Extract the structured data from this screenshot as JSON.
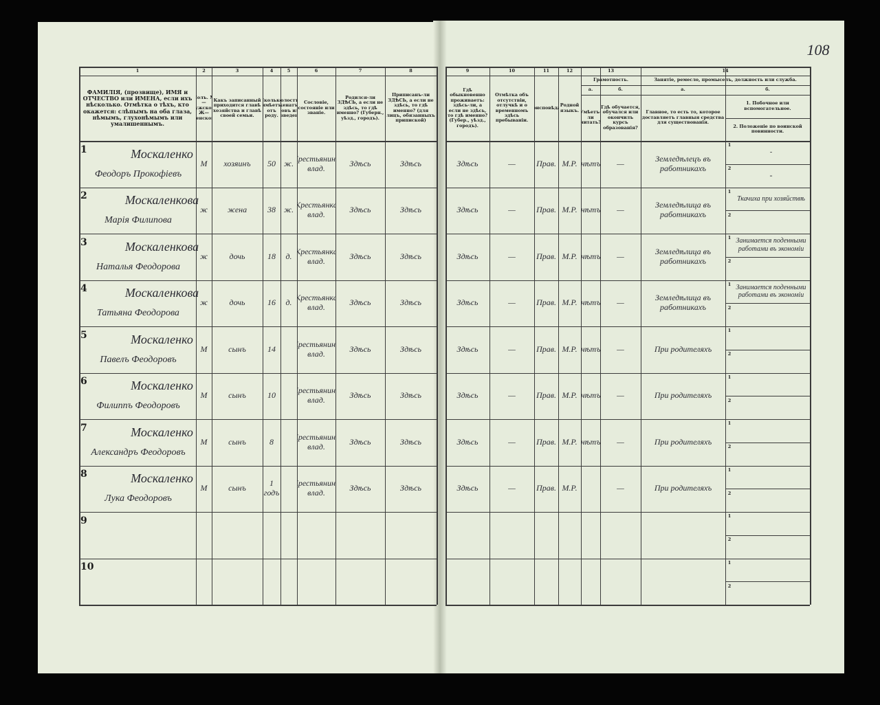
{
  "page_number": "108",
  "column_numbers": [
    "1",
    "2",
    "3",
    "4",
    "5",
    "6",
    "7",
    "8",
    "9",
    "10",
    "11",
    "12",
    "13",
    "14"
  ],
  "left_headers": [
    "ФАМИЛІЯ, (прозвище), ИМЯ и ОТЧЕСТВО или ИМЕНА, если ихъ нѣсколько. Отмѣтка о тѣхъ, кто окажется: слѣпымъ на оба глаза, нѣмымъ, глухонѣмымъ или умалишеннымъ.",
    "Полъ. М—мужской. Ж—женской.",
    "Какъ записанный приходится главѣ хозяйства и главѣ своей семьи.",
    "Сколько имѣетъ отъ роду.",
    "Холостъ, женатъ, вдовъ или разведенъ.",
    "Сословіе, состояніе или званіе.",
    "Родился-ли ЗДѢСЬ, а если не здѣсь, то гдѣ именно? (Губерн., уѣзд., городъ).",
    "Приписанъ-ли ЗДѢСЬ, а если не здѣсь, то гдѣ именно? (для лицъ, обязанныхъ припиской)"
  ],
  "right_headers": [
    "Гдѣ обыкновенно проживаетъ: здѣсь-ли, а если не здѣсь, то гдѣ именно? (Губер., уѣзд., городъ).",
    "Отмѣтка объ отсутствіи, отлучкѣ и о временномъ здѣсь пребываніи.",
    "Вѣроисповѣданіе.",
    "Родной языкъ."
  ],
  "literacy": {
    "title": "Грамотность.",
    "a": "а.",
    "b": "б.",
    "a_header": "Умѣетъ-ли читать?",
    "b_header": "Гдѣ обучается, обучался или окончилъ курсъ образованія?"
  },
  "occupation": {
    "title": "Занятіе, ремесло, промыселъ, должность или служба.",
    "a": "а.",
    "b": "б.",
    "a_header": "Главное, то есть то, которое доставляетъ главныя средства для существованія.",
    "b1_header": "1. Побочное или вспомогательное.",
    "b2_header": "2. Положеніе по воинской повинности."
  },
  "subrow_labels": [
    "1",
    "2"
  ],
  "rows": [
    {
      "number": "1",
      "surname": "Москаленко",
      "given": "Феодоръ Прокофіевъ",
      "sex": "М",
      "relation": "хозяинъ",
      "age": "50",
      "marital": "ж.",
      "estate": "Крестьянинъ влад.",
      "born": "Здѣсь",
      "registered": "Здѣсь",
      "residence": "Здѣсь",
      "absence": "—",
      "religion": "Прав.",
      "language": "М.Р.",
      "literate": "нѣтъ",
      "school": "—",
      "occupation": "Земледѣлецъ въ работникахъ",
      "secondary": "-",
      "military": "-"
    },
    {
      "number": "2",
      "surname": "Москаленкова",
      "given": "Марія Филипова",
      "sex": "ж",
      "relation": "жена",
      "age": "38",
      "marital": "ж.",
      "estate": "Крестьянка влад.",
      "born": "Здѣсь",
      "registered": "Здѣсь",
      "residence": "Здѣсь",
      "absence": "—",
      "religion": "Прав.",
      "language": "М.Р.",
      "literate": "нѣтъ",
      "school": "—",
      "occupation": "Земледѣлица въ работникахъ",
      "secondary": "Ткачиха при хозяйствѣ"
    },
    {
      "number": "3",
      "surname": "Москаленкова",
      "given": "Наталья Феодорова",
      "sex": "ж",
      "relation": "дочь",
      "age": "18",
      "marital": "д.",
      "estate": "Крестьянка влад.",
      "born": "Здѣсь",
      "registered": "Здѣсь",
      "residence": "Здѣсь",
      "absence": "—",
      "religion": "Прав.",
      "language": "М.Р.",
      "literate": "нѣтъ",
      "school": "—",
      "occupation": "Земледѣлица въ работникахъ",
      "secondary": "Занимается поденными работами въ экономіи"
    },
    {
      "number": "4",
      "surname": "Москаленкова",
      "given": "Татьяна Феодорова",
      "sex": "ж",
      "relation": "дочь",
      "age": "16",
      "marital": "д.",
      "estate": "Крестьянка влад.",
      "born": "Здѣсь",
      "registered": "Здѣсь",
      "residence": "Здѣсь",
      "absence": "—",
      "religion": "Прав.",
      "language": "М.Р.",
      "literate": "нѣтъ",
      "school": "—",
      "occupation": "Земледѣлица въ работникахъ",
      "secondary": "Занимается поденными работами въ экономіи"
    },
    {
      "number": "5",
      "surname": "Москаленко",
      "given": "Павелъ Феодоровъ",
      "sex": "М",
      "relation": "сынъ",
      "age": "14",
      "estate": "Крестьянинъ влад.",
      "born": "Здѣсь",
      "registered": "Здѣсь",
      "residence": "Здѣсь",
      "absence": "—",
      "religion": "Прав.",
      "language": "М.Р.",
      "literate": "нѣтъ",
      "school": "—",
      "occupation": "При родителяхъ"
    },
    {
      "number": "6",
      "surname": "Москаленко",
      "given": "Филиппъ Феодоровъ",
      "sex": "М",
      "relation": "сынъ",
      "age": "10",
      "estate": "Крестьянинъ влад.",
      "born": "Здѣсь",
      "registered": "Здѣсь",
      "residence": "Здѣсь",
      "absence": "—",
      "religion": "Прав.",
      "language": "М.Р.",
      "literate": "нѣтъ",
      "school": "—",
      "occupation": "При родителяхъ"
    },
    {
      "number": "7",
      "surname": "Москаленко",
      "given": "Александръ Феодоровъ",
      "sex": "М",
      "relation": "сынъ",
      "age": "8",
      "estate": "Крестьянинъ влад.",
      "born": "Здѣсь",
      "registered": "Здѣсь",
      "residence": "Здѣсь",
      "absence": "—",
      "religion": "Прав.",
      "language": "М.Р.",
      "literate": "нѣтъ",
      "school": "—",
      "occupation": "При родителяхъ"
    },
    {
      "number": "8",
      "surname": "Москаленко",
      "given": "Лука Феодоровъ",
      "sex": "М",
      "relation": "сынъ",
      "age": "1 годъ",
      "estate": "Крестьянинъ влад.",
      "born": "Здѣсь",
      "registered": "Здѣсь",
      "residence": "Здѣсь",
      "absence": "—",
      "religion": "Прав.",
      "language": "М.Р.",
      "school": "—",
      "occupation": "При родителяхъ"
    },
    {
      "number": "9"
    },
    {
      "number": "10"
    }
  ]
}
